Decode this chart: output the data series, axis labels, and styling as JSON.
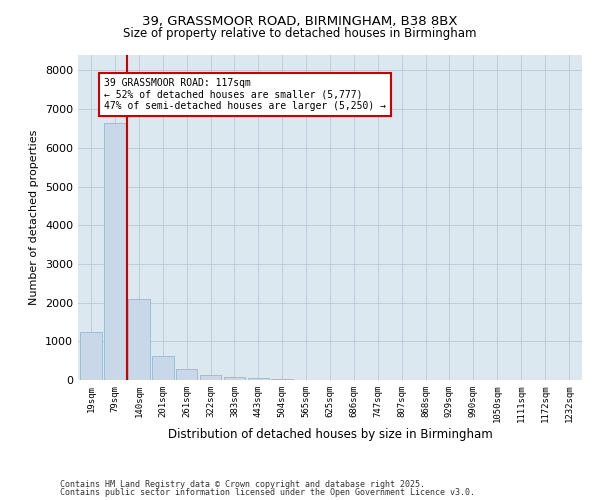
{
  "title_line1": "39, GRASSMOOR ROAD, BIRMINGHAM, B38 8BX",
  "title_line2": "Size of property relative to detached houses in Birmingham",
  "xlabel": "Distribution of detached houses by size in Birmingham",
  "ylabel": "Number of detached properties",
  "annotation_line1": "39 GRASSMOOR ROAD: 117sqm",
  "annotation_line2": "← 52% of detached houses are smaller (5,777)",
  "annotation_line3": "47% of semi-detached houses are larger (5,250) →",
  "footnote1": "Contains HM Land Registry data © Crown copyright and database right 2025.",
  "footnote2": "Contains public sector information licensed under the Open Government Licence v3.0.",
  "bar_color": "#c8d8e8",
  "bar_edge_color": "#9ab8cc",
  "line_color": "#cc0000",
  "annotation_box_color": "#cc0000",
  "background_color": "#ffffff",
  "ax_background": "#dce8f0",
  "grid_color": "#b8c8d8",
  "categories": [
    "19sqm",
    "79sqm",
    "140sqm",
    "201sqm",
    "261sqm",
    "322sqm",
    "383sqm",
    "443sqm",
    "504sqm",
    "565sqm",
    "625sqm",
    "686sqm",
    "747sqm",
    "807sqm",
    "868sqm",
    "929sqm",
    "990sqm",
    "1050sqm",
    "1111sqm",
    "1172sqm",
    "1232sqm"
  ],
  "values": [
    1250,
    6650,
    2100,
    620,
    280,
    140,
    70,
    50,
    30,
    10,
    5,
    0,
    0,
    0,
    0,
    0,
    0,
    0,
    0,
    0,
    0
  ],
  "ylim": [
    0,
    8400
  ],
  "yticks": [
    0,
    1000,
    2000,
    3000,
    4000,
    5000,
    6000,
    7000,
    8000
  ],
  "property_line_x": 1.5
}
